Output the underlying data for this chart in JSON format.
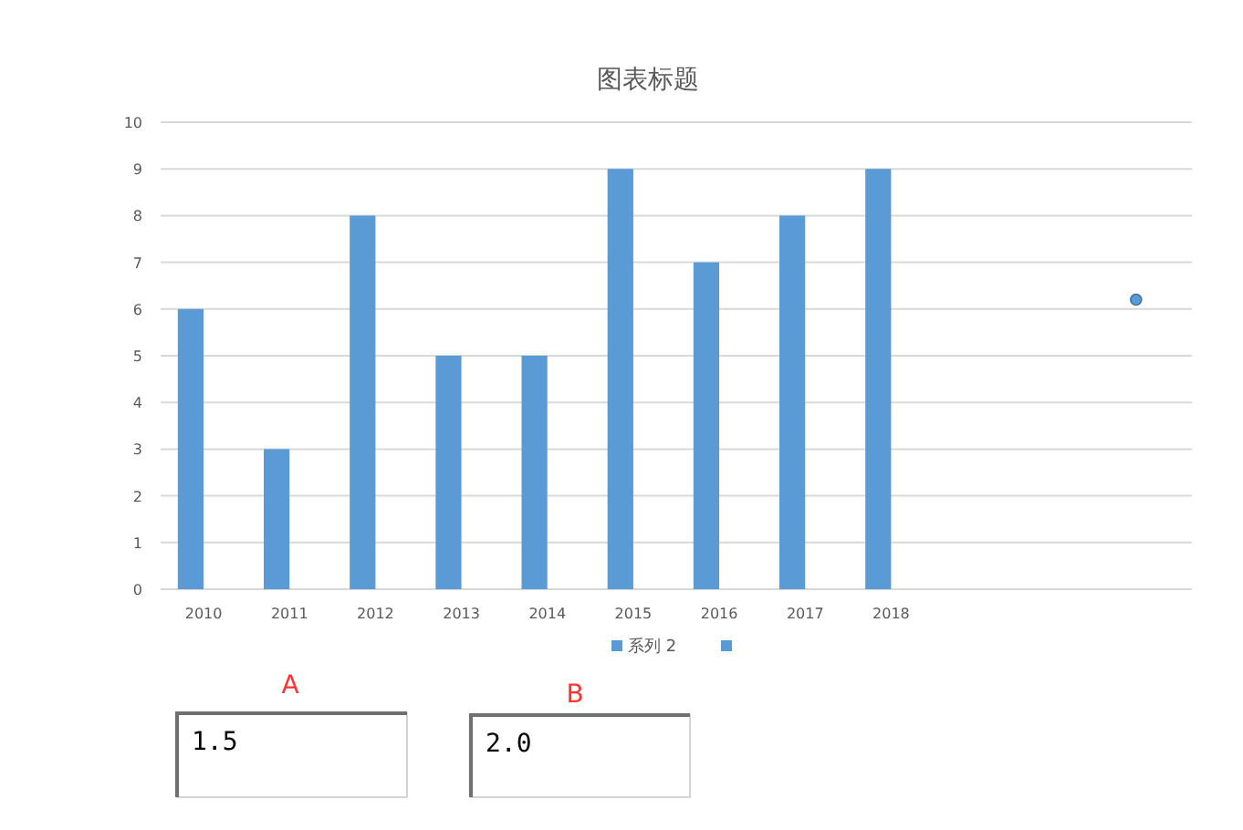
{
  "chart_data": {
    "type": "bar",
    "title": "图表标题",
    "categories": [
      "2010",
      "2011",
      "2012",
      "2013",
      "2014",
      "2015",
      "2016",
      "2017",
      "2018",
      null,
      null,
      null
    ],
    "series": [
      {
        "name": "系列 2",
        "color": "#5b9bd5",
        "values": [
          6,
          3,
          8,
          5,
          5,
          9,
          7,
          8,
          9,
          null,
          null,
          null
        ]
      },
      {
        "type": "scatter",
        "color": "#5b9bd5",
        "marker": "circle",
        "values": [
          null,
          null,
          null,
          null,
          null,
          null,
          null,
          null,
          null,
          null,
          null,
          6.2
        ]
      }
    ],
    "ylim": [
      0,
      10
    ],
    "yticks": [
      0,
      1,
      2,
      3,
      4,
      5,
      6,
      7,
      8,
      9,
      10
    ],
    "grid": "y",
    "legend": "bottom",
    "annotations": [
      "A",
      "1.5",
      "B",
      "2.0"
    ]
  }
}
